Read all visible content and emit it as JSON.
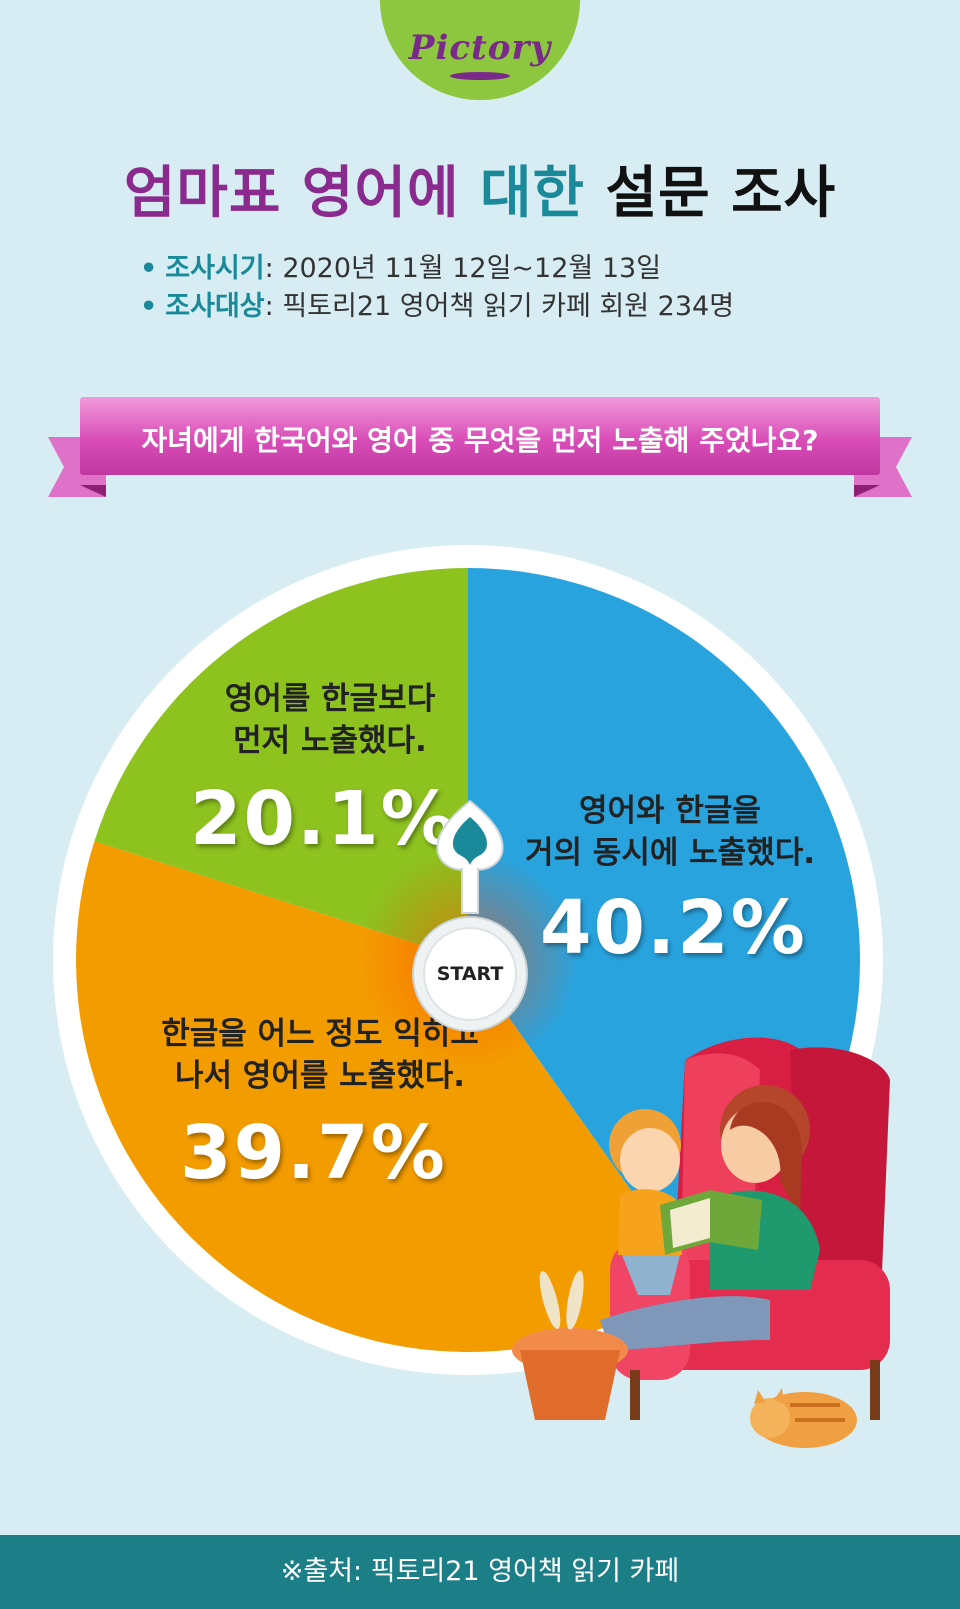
{
  "logo": {
    "text": "Pictory"
  },
  "title": {
    "part1": "엄마표 영어에",
    "part2": "대한",
    "part3": "설문 조사"
  },
  "meta": {
    "period_label": "조사시기",
    "period_value": ": 2020년 11월 12일~12월 13일",
    "target_label": "조사대상",
    "target_value": ": 픽토리21 영어책 읽기 카페 회원 234명"
  },
  "question": "자녀에게 한국어와 영어 중 무엇을 먼저 노출해 주었나요?",
  "start_label": "START",
  "colors": {
    "blue": "#29a3dd",
    "orange": "#f39c00",
    "green": "#8dc21f",
    "ribbon": "#d94db8",
    "footer": "#1c7e86"
  },
  "chart_data": {
    "type": "pie",
    "title": "",
    "start_angle": "12 o'clock, clockwise",
    "slices": [
      {
        "label_line1": "영어와 한글을",
        "label_line2": "거의 동시에 노출했다.",
        "value": 40.2,
        "value_text": "40.2%",
        "color": "#29a3dd"
      },
      {
        "label_line1": "한글을 어느 정도 익히고",
        "label_line2": "나서 영어를 노출했다.",
        "value": 39.7,
        "value_text": "39.7%",
        "color": "#f39c00"
      },
      {
        "label_line1": "영어를 한글보다",
        "label_line2": "먼저 노출했다.",
        "value": 20.1,
        "value_text": "20.1%",
        "color": "#8dc21f"
      }
    ]
  },
  "footer": "※출처: 픽토리21 영어책 읽기 카페"
}
